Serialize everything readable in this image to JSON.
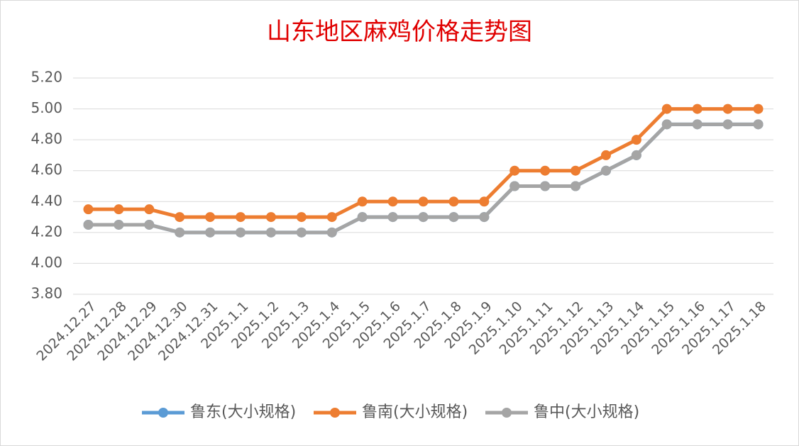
{
  "chart_data": {
    "type": "line",
    "title": "山东地区麻鸡价格走势图",
    "categories": [
      "2024.12.27",
      "2024.12.28",
      "2024.12.29",
      "2024.12.30",
      "2024.12.31",
      "2025.1.1",
      "2025.1.2",
      "2025.1.3",
      "2025.1.4",
      "2025.1.5",
      "2025.1.6",
      "2025.1.7",
      "2025.1.8",
      "2025.1.9",
      "2025.1.10",
      "2025.1.11",
      "2025.1.12",
      "2025.1.13",
      "2025.1.14",
      "2025.1.15",
      "2025.1.16",
      "2025.1.17",
      "2025.1.18"
    ],
    "series": [
      {
        "name": "鲁东(大小规格)",
        "color": "#5b9bd5",
        "values": [
          4.25,
          4.25,
          4.25,
          4.2,
          4.2,
          4.2,
          4.2,
          4.2,
          4.2,
          4.3,
          4.3,
          4.3,
          4.3,
          4.3,
          4.5,
          4.5,
          4.5,
          4.6,
          4.7,
          4.9,
          4.9,
          4.9,
          4.9
        ]
      },
      {
        "name": "鲁南(大小规格)",
        "color": "#ed7d31",
        "values": [
          4.35,
          4.35,
          4.35,
          4.3,
          4.3,
          4.3,
          4.3,
          4.3,
          4.3,
          4.4,
          4.4,
          4.4,
          4.4,
          4.4,
          4.6,
          4.6,
          4.6,
          4.7,
          4.8,
          5.0,
          5.0,
          5.0,
          5.0
        ]
      },
      {
        "name": "鲁中(大小规格)",
        "color": "#a5a5a5",
        "values": [
          4.25,
          4.25,
          4.25,
          4.2,
          4.2,
          4.2,
          4.2,
          4.2,
          4.2,
          4.3,
          4.3,
          4.3,
          4.3,
          4.3,
          4.5,
          4.5,
          4.5,
          4.6,
          4.7,
          4.9,
          4.9,
          4.9,
          4.9
        ]
      }
    ],
    "ylim": [
      3.8,
      5.2
    ],
    "yticks": [
      {
        "value": 3.8,
        "label": "3.80"
      },
      {
        "value": 4.0,
        "label": "4.00"
      },
      {
        "value": 4.2,
        "label": "4.20"
      },
      {
        "value": 4.4,
        "label": "4.40"
      },
      {
        "value": 4.6,
        "label": "4.60"
      },
      {
        "value": 4.8,
        "label": "4.80"
      },
      {
        "value": 5.0,
        "label": "5.00"
      },
      {
        "value": 5.2,
        "label": "5.20"
      }
    ],
    "grid": true,
    "legend": "bottom"
  }
}
